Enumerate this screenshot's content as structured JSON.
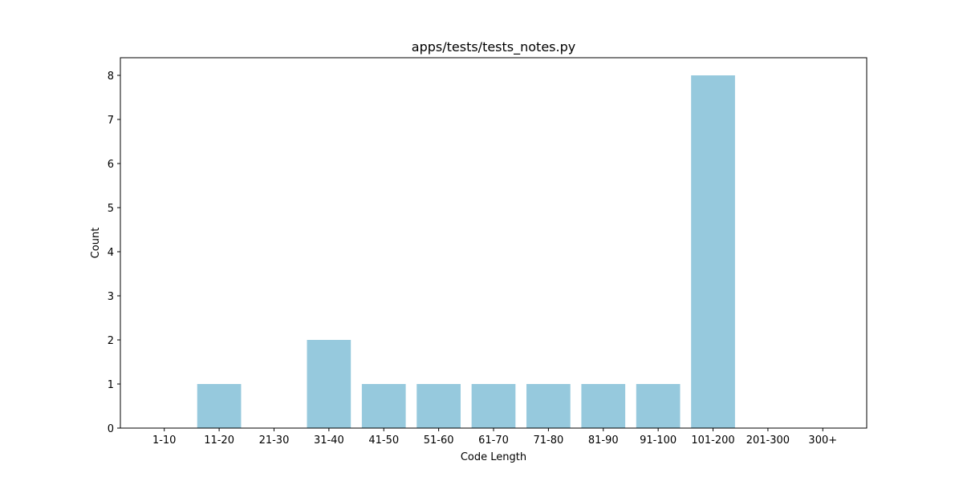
{
  "chart_data": {
    "type": "bar",
    "title": "apps/tests/tests_notes.py",
    "xlabel": "Code Length",
    "ylabel": "Count",
    "categories": [
      "1-10",
      "11-20",
      "21-30",
      "31-40",
      "41-50",
      "51-60",
      "61-70",
      "71-80",
      "81-90",
      "91-100",
      "101-200",
      "201-300",
      "300+"
    ],
    "values": [
      0,
      1,
      0,
      2,
      1,
      1,
      1,
      1,
      1,
      1,
      8,
      0,
      0
    ],
    "ylim": [
      0,
      8.4
    ],
    "yticks": [
      0,
      1,
      2,
      3,
      4,
      5,
      6,
      7,
      8
    ],
    "grid": false,
    "bar_color": "#96c9dd"
  }
}
